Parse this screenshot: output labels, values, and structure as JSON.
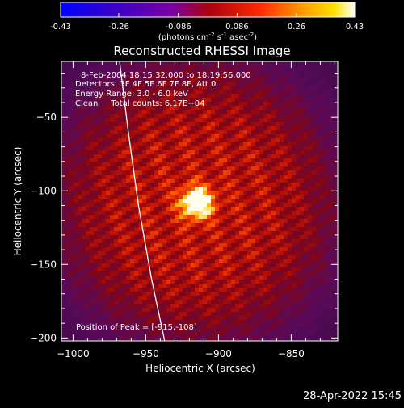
{
  "colorbar": {
    "ticks": [
      "-0.43",
      "-0.26",
      "-0.086",
      "0.086",
      "0.26",
      "0.43"
    ],
    "tick_values": [
      -0.43,
      -0.26,
      -0.086,
      0.086,
      0.26,
      0.43
    ],
    "unit_prefix": "(photons cm",
    "unit_exp1": "-2",
    "unit_mid": " s",
    "unit_exp2": "-1",
    "unit_mid2": " asec",
    "unit_exp3": "-2",
    "unit_suffix": ")"
  },
  "footer": {
    "timestamp": "28-Apr-2022 15:45"
  },
  "chart_data": {
    "type": "heatmap",
    "title": "Reconstructed RHESSI Image",
    "xlabel": "Heliocentric X (arcsec)",
    "ylabel": "Heliocentric Y (arcsec)",
    "xlim": [
      -1008,
      -818
    ],
    "ylim": [
      -202,
      -12
    ],
    "x_ticks": [
      -1000,
      -950,
      -900,
      -850
    ],
    "x_tick_labels": [
      "−1000",
      "−950",
      "−900",
      "−850"
    ],
    "y_ticks": [
      -50,
      -100,
      -150,
      -200
    ],
    "y_tick_labels": [
      "−50",
      "−100",
      "−150",
      "−200"
    ],
    "annotations": [
      "8-Feb-2004 18:15:32.000 to 18:19:56.000",
      "Detectors: 3F 4F 5F 6F 7F 8F, Att 0",
      "Energy Range: 3.0 - 6.0 keV",
      "Clean     Total counts: 6.17E+04"
    ],
    "peak_label": "Position of Peak = [-915,-108]",
    "peak": {
      "x": -915,
      "y": -108
    },
    "color_range": [
      -0.43,
      0.43
    ],
    "limb_x_at_y": [
      [
        -968,
        -12
      ],
      [
        -962,
        -60
      ],
      [
        -955,
        -110
      ],
      [
        -946,
        -160
      ],
      [
        -937,
        -202
      ]
    ]
  }
}
